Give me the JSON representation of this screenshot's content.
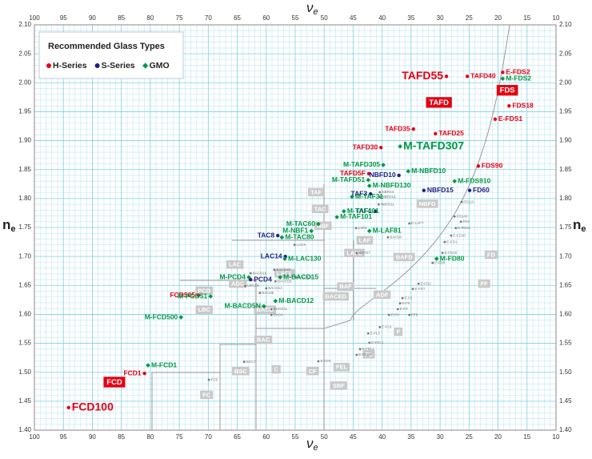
{
  "chart_data": {
    "type": "scatter",
    "x_label": {
      "symbol": "ν",
      "subscript": "e"
    },
    "y_label": {
      "symbol": "n",
      "subscript": "e"
    },
    "xlim": [
      100,
      10
    ],
    "ylim": [
      1.4,
      2.1
    ],
    "xticks": [
      100,
      95,
      90,
      85,
      80,
      75,
      70,
      65,
      60,
      55,
      50,
      45,
      40,
      35,
      30,
      25,
      20,
      15,
      10
    ],
    "yticks": [
      {
        "value": 1.4,
        "label": "1.40"
      },
      1.45,
      {
        "value": 1.5,
        "label": "1.50"
      },
      1.55,
      {
        "value": 1.6,
        "label": "1.60"
      },
      1.65,
      {
        "value": 1.7,
        "label": "1.70"
      },
      1.75,
      {
        "value": 1.8,
        "label": "1.80"
      },
      1.85,
      {
        "value": 1.9,
        "label": "1.90"
      },
      1.95,
      {
        "value": 2.0,
        "label": "2.00"
      },
      2.05,
      {
        "value": 2.1,
        "label": "2.10"
      }
    ],
    "grid": true,
    "legend": {
      "title": "Recommended Glass Types",
      "position": "top-left"
    },
    "series": [
      {
        "name": "H-Series",
        "color": "#e60012",
        "marker": "circle",
        "labels": [
          "TAFD55",
          "TAFD40",
          "E-FDS2",
          "FDS18",
          "E-FDS1",
          "TAFD35",
          "TAFD25",
          "TAFD30",
          "FDS90",
          "TAFD5F",
          "FCD505",
          "FCD1",
          "FCD100"
        ],
        "x": [
          28.9,
          25.3,
          19.2,
          18.1,
          20.5,
          34.6,
          30.8,
          40.2,
          23.4,
          42.3,
          71.7,
          81.0,
          94.1
        ],
        "values": [
          2.011,
          2.011,
          2.018,
          1.96,
          1.937,
          1.92,
          1.912,
          1.888,
          1.856,
          1.843,
          1.633,
          1.498,
          1.439
        ]
      },
      {
        "name": "S-Series",
        "color": "#1d2088",
        "marker": "circle",
        "labels": [
          "NBFD10",
          "TAF3",
          "NBFD15",
          "FD60",
          "TAF1",
          "TAC8",
          "LAC14",
          "PCD4"
        ],
        "x": [
          37.1,
          42.0,
          32.8,
          24.9,
          41.2,
          58.0,
          56.7,
          62.7
        ],
        "values": [
          1.84,
          1.808,
          1.814,
          1.814,
          1.778,
          1.736,
          1.7,
          1.66
        ]
      },
      {
        "name": "GMO",
        "color": "#009944",
        "marker": "diamond",
        "labels": [
          "M-TAFD307",
          "M-TAFD305",
          "M-NBFD10",
          "M-TAFD51",
          "M-NBFD130",
          "M-TAF31",
          "M-FDS910",
          "M-TAF401",
          "M-TAF101",
          "M-TAC60",
          "M-NBF1",
          "M-TAC80",
          "M-LAF81",
          "M-LAC130",
          "M-FDS2",
          "M-FD80",
          "M-PCD4",
          "M-BACD15",
          "M-PCD51",
          "M-BACD5N",
          "M-BACD12",
          "M-FCD500",
          "M-FCD1"
        ],
        "x": [
          36.9,
          39.8,
          35.5,
          42.4,
          42.2,
          45.2,
          27.5,
          46.6,
          47.8,
          51.0,
          52.2,
          57.3,
          42.2,
          56.8,
          19.2,
          30.6,
          63.0,
          57.6,
          69.6,
          60.4,
          58.4,
          74.7,
          80.4
        ],
        "values": [
          1.89,
          1.858,
          1.847,
          1.832,
          1.822,
          1.803,
          1.83,
          1.778,
          1.768,
          1.756,
          1.744,
          1.733,
          1.744,
          1.696,
          2.007,
          1.696,
          1.664,
          1.664,
          1.631,
          1.614,
          1.623,
          1.595,
          1.512
        ]
      }
    ],
    "other_points": {
      "color": "#777777",
      "labels": [
        "NBFD3",
        "NBFD13",
        "NBFD11",
        "LAF2",
        "BAFD8",
        "BAFD7",
        "E-LAF7",
        "FD110",
        "FD140",
        "FD4",
        "E-FD13",
        "E-FD10",
        "E-FD1",
        "E-FD15",
        "E-FD8",
        "E-FD2",
        "E-FD7",
        "E-F2",
        "E-F5",
        "E-F3",
        "E-F8",
        "FF5",
        "E-FL6",
        "E-FL5",
        "E-FEL1",
        "E-FEL2",
        "E-FEL6",
        "E-CF6",
        "BSC7",
        "FC5",
        "LAC8",
        "BACED9",
        "BACD16",
        "BACD18",
        "BACED5",
        "BACD5",
        "BACD14",
        "LBC3N",
        "BACD11",
        "BAC4"
      ],
      "x": [
        40.4,
        40.4,
        40.6,
        44.5,
        39.0,
        44.4,
        35.3,
        26.3,
        27.5,
        26.4,
        27.3,
        28.1,
        29.2,
        29.6,
        31.3,
        33.7,
        34.7,
        36.5,
        36.9,
        37.3,
        38.8,
        35.3,
        40.4,
        42.4,
        42.2,
        43.8,
        44.4,
        51.0,
        63.8,
        69.9,
        55.1,
        54.9,
        62.7,
        58.6,
        58.4,
        61.1,
        60.0,
        63.6,
        59.1,
        59.1
      ],
      "values": [
        1.811,
        1.803,
        1.79,
        1.749,
        1.733,
        1.706,
        1.757,
        1.794,
        1.769,
        1.76,
        1.749,
        1.736,
        1.725,
        1.706,
        1.689,
        1.653,
        1.644,
        1.628,
        1.619,
        1.609,
        1.599,
        1.599,
        1.578,
        1.567,
        1.551,
        1.54,
        1.53,
        1.519,
        1.518,
        1.487,
        1.72,
        1.664,
        1.671,
        1.677,
        1.657,
        1.637,
        1.645,
        1.649,
        1.609,
        1.599
      ]
    },
    "regions": [
      {
        "label": "TAF",
        "x": 51.4,
        "y": 1.811
      },
      {
        "label": "TAC",
        "x": 50.7,
        "y": 1.782
      },
      {
        "label": "NBF",
        "x": 50.2,
        "y": 1.753
      },
      {
        "label": "LAF",
        "x": 43.0,
        "y": 1.728
      },
      {
        "label": "LAFL",
        "x": 44.8,
        "y": 1.706
      },
      {
        "label": "BAFD",
        "x": 36.2,
        "y": 1.699
      },
      {
        "label": "NBFD",
        "x": 32.2,
        "y": 1.791
      },
      {
        "label": "FD",
        "x": 21.2,
        "y": 1.703
      },
      {
        "label": "FF",
        "x": 22.4,
        "y": 1.653
      },
      {
        "label": "LAC",
        "x": 65.4,
        "y": 1.686
      },
      {
        "label": "LACL",
        "x": 56.8,
        "y": 1.671
      },
      {
        "label": "ADC",
        "x": 64.9,
        "y": 1.653
      },
      {
        "label": "PCD",
        "x": 70.7,
        "y": 1.641
      },
      {
        "label": "BAF",
        "x": 46.3,
        "y": 1.648
      },
      {
        "label": "BACED",
        "x": 48.0,
        "y": 1.631
      },
      {
        "label": "ADF",
        "x": 40.0,
        "y": 1.634
      },
      {
        "label": "LBC",
        "x": 70.7,
        "y": 1.608
      },
      {
        "label": "BACD",
        "x": 60.2,
        "y": 1.608
      },
      {
        "label": "BAC",
        "x": 60.5,
        "y": 1.556
      },
      {
        "label": "F",
        "x": 37.2,
        "y": 1.57
      },
      {
        "label": "FL",
        "x": 42.3,
        "y": 1.531
      },
      {
        "label": "BSC",
        "x": 64.4,
        "y": 1.502
      },
      {
        "label": "C",
        "x": 58.3,
        "y": 1.505
      },
      {
        "label": "CF",
        "x": 52.0,
        "y": 1.502
      },
      {
        "label": "FEL",
        "x": 47.0,
        "y": 1.509
      },
      {
        "label": "SBF",
        "x": 47.5,
        "y": 1.477
      },
      {
        "label": "FC",
        "x": 70.3,
        "y": 1.461
      }
    ],
    "series_tags": [
      {
        "label": "TAFD",
        "x": 30.2,
        "y": 1.966
      },
      {
        "label": "FDS",
        "x": 18.4,
        "y": 1.987
      },
      {
        "label": "FCD",
        "x": 86.2,
        "y": 1.483
      }
    ]
  }
}
